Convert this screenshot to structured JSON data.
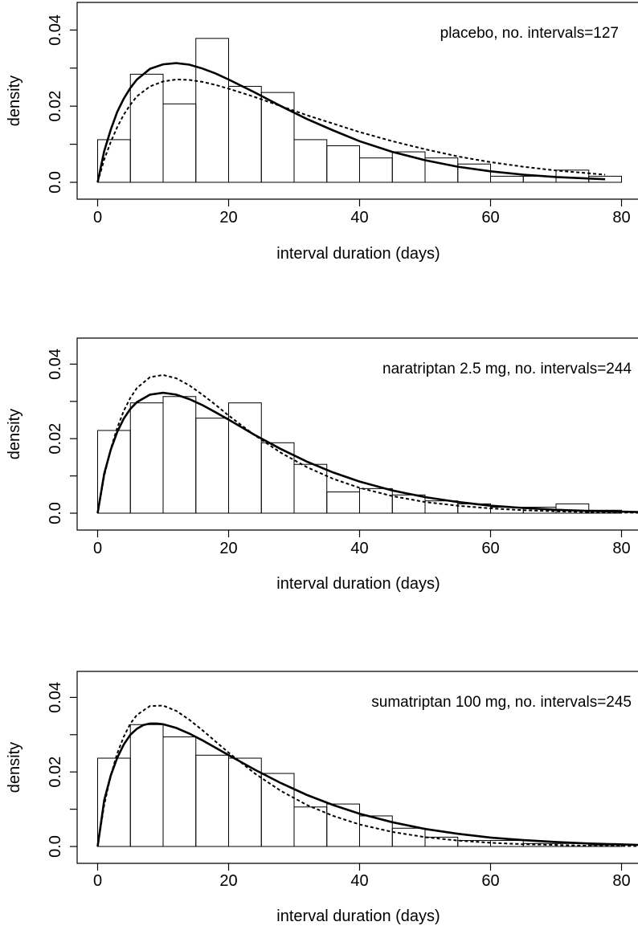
{
  "chart_data": [
    {
      "type": "histogram",
      "annotation": "placebo, no. intervals=127",
      "xlabel": "interval duration (days)",
      "ylabel": "density",
      "xlim": [
        0,
        83
      ],
      "ylim": [
        0,
        0.04
      ],
      "x_ticks": [
        "0",
        "20",
        "40",
        "60",
        "80"
      ],
      "y_ticks": [
        "0.0",
        "0.02",
        "0.04"
      ],
      "bin_width": 5,
      "bins": [
        0,
        5,
        10,
        15,
        20,
        25,
        30,
        35,
        40,
        45,
        50,
        55,
        60,
        65,
        70,
        75
      ],
      "values": [
        0.0112,
        0.0284,
        0.0206,
        0.0378,
        0.0252,
        0.0236,
        0.0112,
        0.0096,
        0.0064,
        0.008,
        0.0064,
        0.0048,
        0.0016,
        0.0016,
        0.0032,
        0.0016
      ],
      "series": [
        {
          "style": "solid",
          "x": [
            0,
            1,
            2,
            3,
            4,
            5,
            6,
            8,
            10,
            12,
            14,
            16,
            18,
            20,
            24,
            28,
            32,
            36,
            40,
            45,
            50,
            55,
            60,
            65,
            70,
            77.5
          ],
          "y": [
            0,
            0.0082,
            0.0138,
            0.0185,
            0.022,
            0.0248,
            0.027,
            0.0298,
            0.031,
            0.0313,
            0.0309,
            0.0299,
            0.0286,
            0.027,
            0.0236,
            0.02,
            0.0166,
            0.0136,
            0.0108,
            0.008,
            0.0058,
            0.0041,
            0.0029,
            0.002,
            0.0014,
            0.0008
          ]
        },
        {
          "style": "dashed",
          "x": [
            0,
            1,
            2,
            3,
            4,
            5,
            6,
            8,
            10,
            12,
            14,
            16,
            18,
            20,
            24,
            28,
            32,
            36,
            40,
            45,
            50,
            55,
            60,
            65,
            70,
            77.5
          ],
          "y": [
            0,
            0.006,
            0.0106,
            0.0145,
            0.0178,
            0.0204,
            0.0226,
            0.0252,
            0.0265,
            0.027,
            0.0269,
            0.0264,
            0.0256,
            0.0246,
            0.0224,
            0.02,
            0.0176,
            0.0154,
            0.0132,
            0.0108,
            0.0087,
            0.0068,
            0.0053,
            0.0041,
            0.0031,
            0.002
          ]
        }
      ]
    },
    {
      "type": "histogram",
      "annotation": "naratriptan 2.5 mg, no. intervals=244",
      "xlabel": "interval duration (days)",
      "ylabel": "density",
      "xlim": [
        0,
        83
      ],
      "ylim": [
        0,
        0.04
      ],
      "x_ticks": [
        "0",
        "20",
        "40",
        "60",
        "80"
      ],
      "y_ticks": [
        "0.0",
        "0.02",
        "0.04"
      ],
      "bin_width": 5,
      "bins": [
        0,
        5,
        10,
        15,
        20,
        25,
        30,
        35,
        40,
        45,
        50,
        55,
        60,
        65,
        70,
        75
      ],
      "values": [
        0.0222,
        0.0296,
        0.0313,
        0.0255,
        0.0296,
        0.0189,
        0.0131,
        0.0057,
        0.0066,
        0.0049,
        0.0033,
        0.0025,
        0.0016,
        0.0016,
        0.0025,
        0.0008
      ],
      "series": [
        {
          "style": "solid",
          "x": [
            0,
            1,
            2,
            3,
            4,
            5,
            6,
            8,
            10,
            12,
            14,
            16,
            18,
            20,
            24,
            28,
            32,
            36,
            40,
            45,
            50,
            55,
            60,
            65,
            70,
            75,
            83
          ],
          "y": [
            0,
            0.0106,
            0.017,
            0.0218,
            0.0254,
            0.028,
            0.0298,
            0.0318,
            0.0323,
            0.0318,
            0.0306,
            0.029,
            0.0271,
            0.0251,
            0.021,
            0.0172,
            0.0138,
            0.0109,
            0.0085,
            0.0061,
            0.0043,
            0.003,
            0.002,
            0.0014,
            0.0009,
            0.0006,
            0.0003
          ]
        },
        {
          "style": "dashed",
          "x": [
            0,
            1,
            2,
            3,
            4,
            5,
            6,
            8,
            10,
            12,
            14,
            16,
            18,
            20,
            24,
            28,
            32,
            36,
            40,
            45,
            50,
            55,
            60,
            65,
            70,
            75,
            83
          ],
          "y": [
            0,
            0.01,
            0.0172,
            0.0229,
            0.0275,
            0.031,
            0.0336,
            0.0365,
            0.0371,
            0.0362,
            0.0343,
            0.0318,
            0.0291,
            0.0262,
            0.0209,
            0.0162,
            0.0123,
            0.0092,
            0.0068,
            0.0046,
            0.003,
            0.002,
            0.0013,
            0.0008,
            0.0005,
            0.0003,
            0.0001
          ]
        }
      ]
    },
    {
      "type": "histogram",
      "annotation": "sumatriptan 100 mg, no. intervals=245",
      "xlabel": "interval duration (days)",
      "ylabel": "density",
      "xlim": [
        0,
        83
      ],
      "ylim": [
        0,
        0.04
      ],
      "x_ticks": [
        "0",
        "20",
        "40",
        "60",
        "80"
      ],
      "y_ticks": [
        "0.0",
        "0.02",
        "0.04"
      ],
      "bin_width": 5,
      "bins": [
        0,
        5,
        10,
        15,
        20,
        25,
        30,
        35,
        40,
        45,
        50,
        55,
        60,
        65,
        70,
        75
      ],
      "values": [
        0.0237,
        0.0327,
        0.0294,
        0.0245,
        0.0237,
        0.0196,
        0.0106,
        0.0114,
        0.0082,
        0.0049,
        0.0025,
        0.0016,
        0.0016,
        0.0008,
        0.0008,
        0.0004
      ],
      "series": [
        {
          "style": "solid",
          "x": [
            0,
            1,
            2,
            3,
            4,
            5,
            6,
            7,
            8,
            9,
            10,
            12,
            14,
            16,
            18,
            20,
            24,
            28,
            32,
            36,
            40,
            45,
            50,
            55,
            60,
            65,
            70,
            75,
            83
          ],
          "y": [
            0,
            0.0124,
            0.019,
            0.0238,
            0.0274,
            0.03,
            0.0316,
            0.0326,
            0.033,
            0.033,
            0.0328,
            0.0318,
            0.0303,
            0.0285,
            0.0265,
            0.0245,
            0.0206,
            0.017,
            0.0138,
            0.0111,
            0.0088,
            0.0065,
            0.0047,
            0.0034,
            0.0024,
            0.0017,
            0.0012,
            0.0008,
            0.0004
          ]
        },
        {
          "style": "dashed",
          "x": [
            0,
            1,
            2,
            3,
            4,
            5,
            6,
            8,
            10,
            12,
            14,
            16,
            18,
            20,
            24,
            28,
            32,
            36,
            40,
            45,
            50,
            55,
            60,
            65,
            70,
            75,
            83
          ],
          "y": [
            0,
            0.0112,
            0.019,
            0.025,
            0.0295,
            0.033,
            0.0353,
            0.0377,
            0.0378,
            0.0364,
            0.034,
            0.0312,
            0.0282,
            0.0252,
            0.0196,
            0.0149,
            0.0111,
            0.0082,
            0.0059,
            0.0039,
            0.0025,
            0.0016,
            0.001,
            0.0006,
            0.0004,
            0.0002,
            0.0001
          ]
        }
      ]
    }
  ]
}
